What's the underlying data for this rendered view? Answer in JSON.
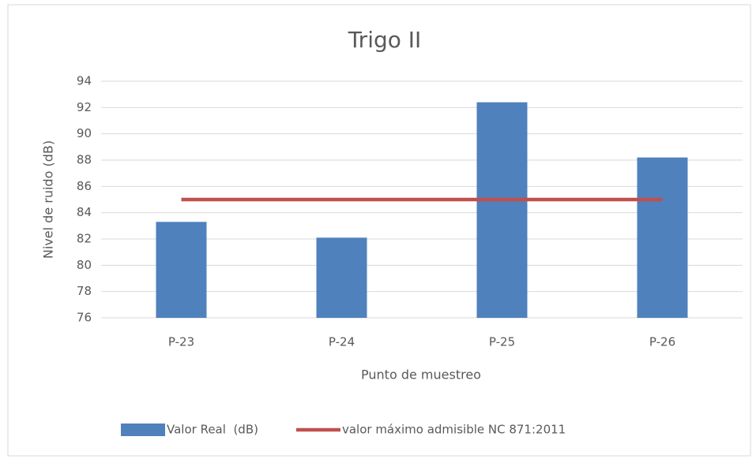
{
  "chart_data": {
    "type": "bar",
    "title": "Trigo II",
    "y_label": "Nivel de ruido (dB)",
    "x_label": "Punto de muestreo",
    "categories": [
      "P-23",
      "P-24",
      "P-25",
      "P-26"
    ],
    "series": [
      {
        "name": "Valor Real  (dB)",
        "type": "bar",
        "color": "#4f81bd",
        "values": [
          83.3,
          82.1,
          92.4,
          88.2
        ]
      },
      {
        "name": "valor máximo admisible NC 871:2011",
        "type": "line",
        "color": "#c0504d",
        "values": [
          85,
          85,
          85,
          85
        ]
      }
    ],
    "ylim": [
      76,
      94
    ],
    "yticks": [
      76,
      78,
      80,
      82,
      84,
      86,
      88,
      90,
      92,
      94
    ],
    "grid": true,
    "legend": "bottom"
  }
}
